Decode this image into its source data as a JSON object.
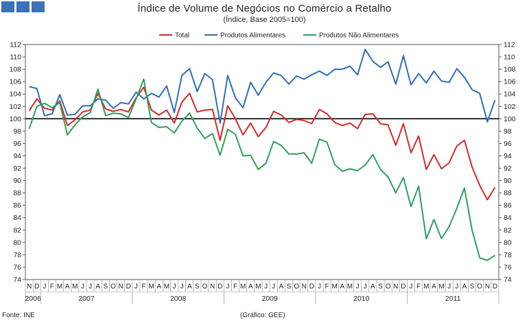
{
  "title": "Índice de Volume de Negócios no Comércio a Retalho",
  "subtitle": "(Índice, Base 2005=100)",
  "source": "Fonte: INE",
  "credit": "(Gráfico: GEE)",
  "chart_data": {
    "type": "line",
    "ylim": [
      74,
      112
    ],
    "yticks": [
      74,
      76,
      78,
      80,
      82,
      84,
      86,
      88,
      90,
      92,
      94,
      96,
      98,
      100,
      102,
      104,
      106,
      108,
      110,
      112
    ],
    "reference_line": 100,
    "legend_position": "top",
    "x": [
      "N",
      "D",
      "J",
      "F",
      "M",
      "A",
      "M",
      "J",
      "J",
      "A",
      "S",
      "O",
      "N",
      "D",
      "J",
      "F",
      "M",
      "A",
      "M",
      "J",
      "J",
      "A",
      "S",
      "O",
      "N",
      "D",
      "J",
      "F",
      "M",
      "A",
      "M",
      "J",
      "J",
      "A",
      "S",
      "O",
      "N",
      "D",
      "J",
      "F",
      "M",
      "A",
      "M",
      "J",
      "J",
      "A",
      "S",
      "O",
      "N",
      "D",
      "J",
      "F",
      "M",
      "A",
      "M",
      "J",
      "J",
      "A",
      "S",
      "O",
      "N",
      "D"
    ],
    "years": [
      {
        "label": "2006",
        "start": 0,
        "end": 1
      },
      {
        "label": "2007",
        "start": 2,
        "end": 13
      },
      {
        "label": "2008",
        "start": 14,
        "end": 25
      },
      {
        "label": "2009",
        "start": 26,
        "end": 37
      },
      {
        "label": "2010",
        "start": 38,
        "end": 49
      },
      {
        "label": "2011",
        "start": 50,
        "end": 61
      }
    ],
    "series": [
      {
        "name": "Total",
        "color": "#d62728",
        "values": [
          101.3,
          103.2,
          101.7,
          101.4,
          102.9,
          98.9,
          99.8,
          101.1,
          101.4,
          104.1,
          101.6,
          101.2,
          101.5,
          101.1,
          103.4,
          105.1,
          101.4,
          100.6,
          101.4,
          99.3,
          102.7,
          104.1,
          101.1,
          101.4,
          101.5,
          96.5,
          102.1,
          100.0,
          97.4,
          99.3,
          97.1,
          98.6,
          101.2,
          100.6,
          99.4,
          99.9,
          99.7,
          99.2,
          101.5,
          100.8,
          99.4,
          98.9,
          99.3,
          98.4,
          100.7,
          100.8,
          99.2,
          99.0,
          95.7,
          99.2,
          94.5,
          97.2,
          91.8,
          94.2,
          91.9,
          92.9,
          95.6,
          96.5,
          92.2,
          89.2,
          86.9,
          88.9
        ]
      },
      {
        "name": "Produtos Alimentares",
        "color": "#2e6db4",
        "values": [
          105.2,
          104.9,
          100.5,
          100.8,
          103.9,
          100.6,
          100.7,
          102.1,
          102.1,
          103.2,
          103.0,
          101.7,
          102.6,
          102.4,
          104.3,
          103.2,
          104.1,
          103.5,
          105.3,
          101.0,
          107.0,
          108.1,
          104.4,
          107.3,
          106.3,
          99.3,
          107.0,
          103.4,
          101.8,
          105.9,
          103.8,
          105.9,
          107.4,
          107.0,
          105.6,
          106.9,
          106.4,
          107.1,
          107.7,
          107.0,
          108.0,
          108.0,
          108.5,
          107.1,
          111.2,
          109.3,
          108.3,
          109.2,
          105.6,
          110.2,
          105.5,
          107.3,
          105.8,
          107.7,
          106.1,
          105.9,
          108.1,
          106.7,
          104.7,
          104.1,
          99.5,
          103.0
        ]
      },
      {
        "name": "Produtos Não Alimentares",
        "color": "#2ca05a",
        "values": [
          98.4,
          102.0,
          102.5,
          101.8,
          102.6,
          97.4,
          99.0,
          100.3,
          101.0,
          104.8,
          100.5,
          100.9,
          100.8,
          100.2,
          103.2,
          106.4,
          99.4,
          98.6,
          98.7,
          97.7,
          99.6,
          100.9,
          98.5,
          96.8,
          97.6,
          94.1,
          98.3,
          97.5,
          94.0,
          94.1,
          91.8,
          92.8,
          96.3,
          95.7,
          94.3,
          94.3,
          94.5,
          92.8,
          96.7,
          96.2,
          92.6,
          91.5,
          91.9,
          91.6,
          92.5,
          94.2,
          91.8,
          90.6,
          88.0,
          90.5,
          85.8,
          89.1,
          80.6,
          83.7,
          80.6,
          82.6,
          85.5,
          88.8,
          82.0,
          77.5,
          77.1,
          77.9
        ]
      }
    ]
  }
}
